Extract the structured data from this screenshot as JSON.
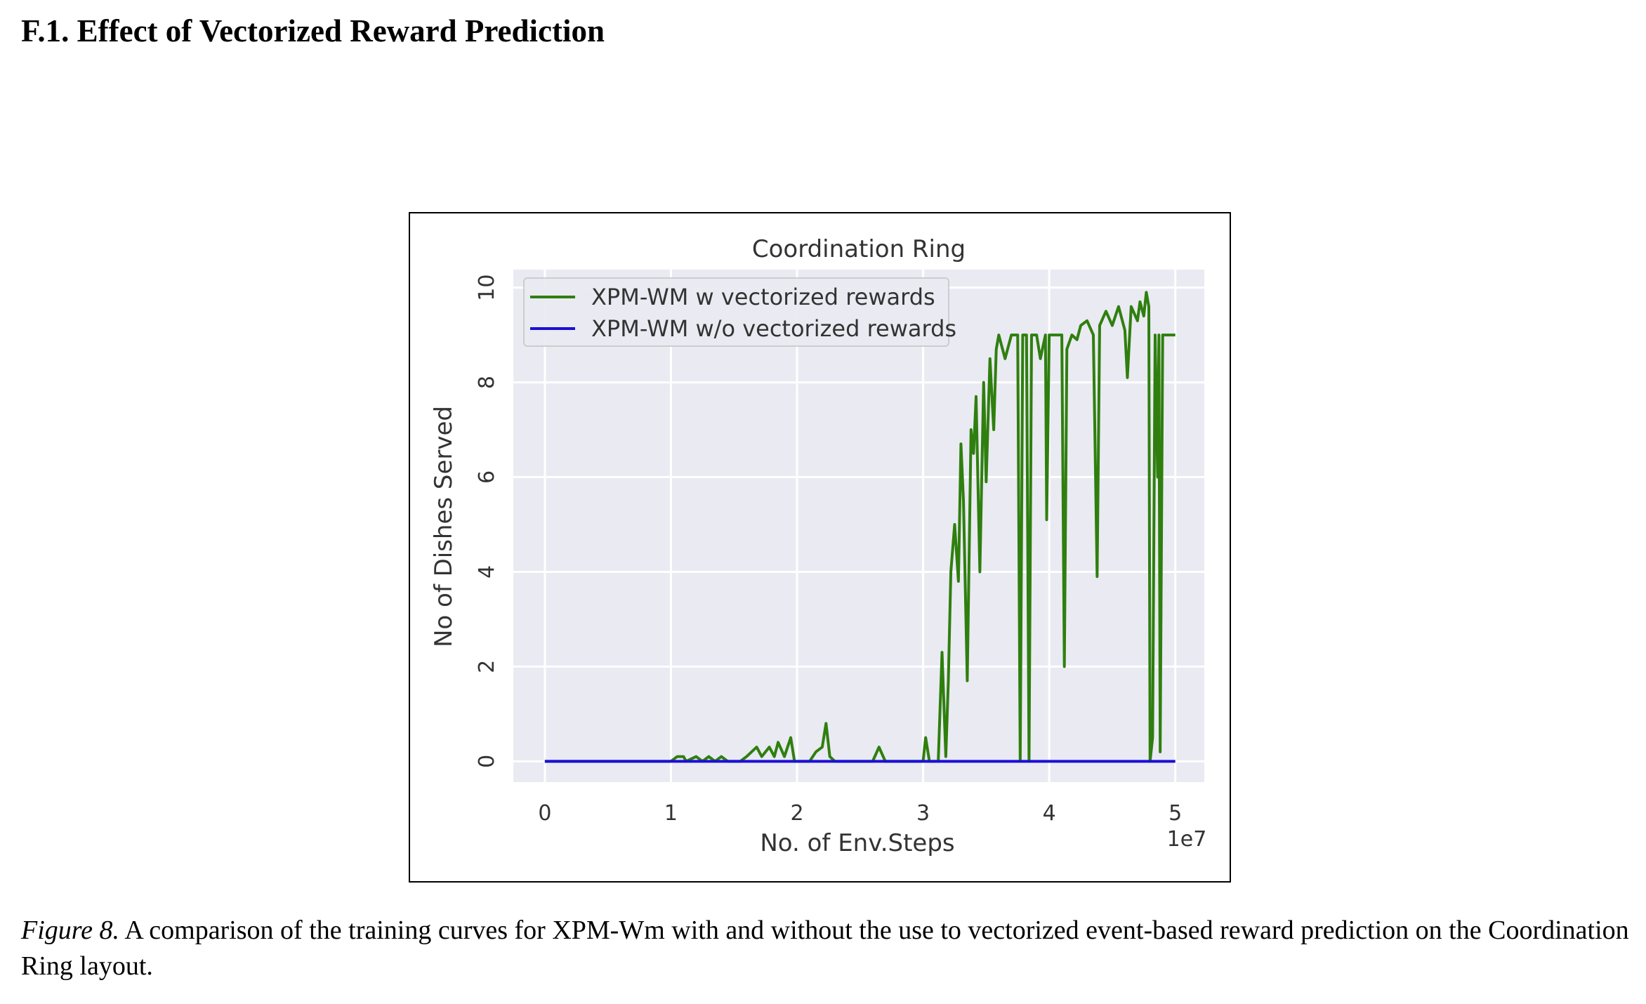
{
  "heading": "F.1. Effect of Vectorized Reward Prediction",
  "caption": {
    "label": "Figure 8.",
    "text": "A comparison of the training curves for XPM-Wm with and without the use to vectorized event-based reward prediction on the Coordination Ring layout."
  },
  "chart_data": {
    "type": "line",
    "title": "Coordination Ring",
    "xlabel": "No. of Env.Steps",
    "ylabel": "No of Dishes Served",
    "x_offset_label": "1e7",
    "xlim": [
      -0.25,
      5.23
    ],
    "ylim": [
      -0.44,
      10.38
    ],
    "xticks": [
      0,
      1,
      2,
      3,
      4,
      5
    ],
    "yticks": [
      0,
      2,
      4,
      6,
      8,
      10
    ],
    "grid": true,
    "legend": "upper left",
    "series": [
      {
        "name": "XPM-WM w vectorized rewards",
        "color": "#2f7f0f",
        "x": [
          0,
          1.0,
          1.05,
          1.1,
          1.12,
          1.2,
          1.25,
          1.3,
          1.35,
          1.4,
          1.45,
          1.55,
          1.6,
          1.68,
          1.72,
          1.78,
          1.82,
          1.85,
          1.9,
          1.95,
          1.98,
          2.1,
          2.15,
          2.2,
          2.23,
          2.26,
          2.3,
          2.6,
          2.65,
          2.7,
          3.0,
          3.02,
          3.05,
          3.12,
          3.15,
          3.18,
          3.2,
          3.22,
          3.25,
          3.28,
          3.3,
          3.32,
          3.35,
          3.38,
          3.4,
          3.42,
          3.45,
          3.48,
          3.5,
          3.53,
          3.56,
          3.58,
          3.6,
          3.65,
          3.7,
          3.75,
          3.77,
          3.79,
          3.82,
          3.84,
          3.86,
          3.9,
          3.93,
          3.97,
          3.98,
          4.0,
          4.05,
          4.1,
          4.12,
          4.14,
          4.18,
          4.22,
          4.25,
          4.3,
          4.35,
          4.38,
          4.4,
          4.45,
          4.5,
          4.55,
          4.6,
          4.62,
          4.65,
          4.7,
          4.72,
          4.75,
          4.77,
          4.79,
          4.8,
          4.82,
          4.84,
          4.86,
          4.87,
          4.88,
          4.9,
          4.95,
          5.0
        ],
        "values": [
          0,
          0,
          0.1,
          0.1,
          0,
          0.1,
          0,
          0.1,
          0,
          0.1,
          0,
          0,
          0.1,
          0.3,
          0.1,
          0.3,
          0.1,
          0.4,
          0.1,
          0.5,
          0,
          0,
          0.2,
          0.3,
          0.8,
          0.1,
          0,
          0,
          0.3,
          0,
          0,
          0.5,
          0,
          0,
          2.3,
          0.1,
          1.7,
          4.0,
          5.0,
          3.8,
          6.7,
          5.5,
          1.7,
          7.0,
          6.5,
          7.7,
          4.0,
          8.0,
          5.9,
          8.5,
          7.0,
          8.7,
          9.0,
          8.5,
          9.0,
          9.0,
          0,
          9.0,
          9.0,
          0,
          9.0,
          9.0,
          8.5,
          9.0,
          5.1,
          9.0,
          9.0,
          9.0,
          2.0,
          8.7,
          9.0,
          8.9,
          9.2,
          9.3,
          9.0,
          3.9,
          9.2,
          9.5,
          9.2,
          9.6,
          9.1,
          8.1,
          9.6,
          9.3,
          9.7,
          9.4,
          9.9,
          9.6,
          0,
          0.5,
          9.0,
          6.0,
          9.0,
          0.2,
          9.0,
          9.0,
          9.0
        ]
      },
      {
        "name": "XPM-WM w/o vectorized rewards",
        "color": "#1a0fd6",
        "x": [
          0,
          5
        ],
        "values": [
          0,
          0
        ]
      }
    ]
  }
}
